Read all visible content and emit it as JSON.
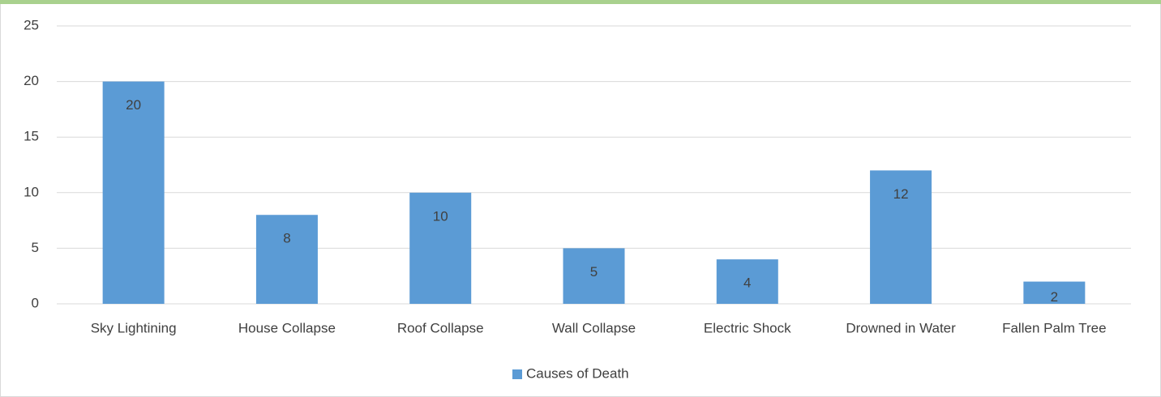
{
  "chart_data": {
    "type": "bar",
    "categories": [
      "Sky Lightining",
      "House Collapse",
      "Roof Collapse",
      "Wall Collapse",
      "Electric Shock",
      "Drowned in Water",
      "Fallen Palm Tree"
    ],
    "series": [
      {
        "name": "Causes of Death",
        "color": "#5b9bd5",
        "values": [
          20,
          8,
          10,
          5,
          4,
          12,
          2
        ]
      }
    ],
    "ylim": [
      0,
      25
    ],
    "yticks": [
      0,
      5,
      10,
      15,
      20,
      25
    ],
    "grid": true,
    "legend": "bottom"
  }
}
